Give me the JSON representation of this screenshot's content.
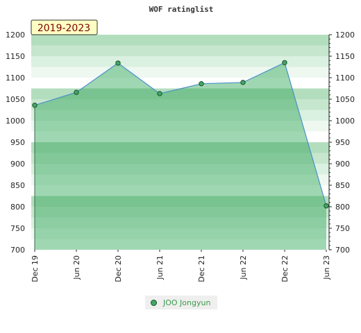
{
  "chart_data": {
    "type": "area",
    "title": "WOF ratinglist",
    "range_label": "2019-2023",
    "categories": [
      "Dec 19",
      "Jun 20",
      "Dec 20",
      "Jun 21",
      "Dec 21",
      "Jun 22",
      "Dec 22",
      "Jun 23"
    ],
    "series": [
      {
        "name": "JOO Jongyun",
        "values": [
          1036,
          1066,
          1134,
          1063,
          1086,
          1089,
          1135,
          802
        ]
      }
    ],
    "ylim": [
      700,
      1200
    ],
    "yticks": [
      700,
      750,
      800,
      850,
      900,
      950,
      1000,
      1050,
      1100,
      1150,
      1200
    ],
    "grid": "horizontal bands",
    "legend_position": "bottom-center",
    "colors": {
      "fill": "#7cc592",
      "line": "#4a90c8",
      "marker": "#3fa864",
      "marker_edge": "#1e4d2c",
      "legend_text": "#3a9a4a",
      "range_label_bg": "#ffffc4"
    }
  }
}
